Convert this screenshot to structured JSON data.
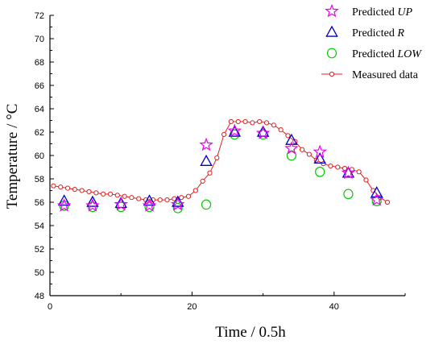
{
  "chart_data": {
    "type": "line",
    "xlabel": "Time / 0.5h",
    "ylabel": "Temperature / °C",
    "xlim": [
      0,
      50
    ],
    "ylim": [
      48,
      72
    ],
    "x_ticks": [
      0,
      20,
      40
    ],
    "y_ticks": [
      48,
      50,
      52,
      54,
      56,
      58,
      60,
      62,
      64,
      66,
      68,
      70,
      72
    ],
    "grid": false,
    "legend_position": "top-right",
    "colors": {
      "up": "#ee00ee",
      "r": "#0000cc",
      "low": "#00cc00",
      "measured": "#dd2222"
    },
    "series": [
      {
        "key": "up",
        "name": "Predicted UP",
        "name_prefix": "Predicted ",
        "name_em": "UP",
        "marker": "star",
        "x": [
          2,
          6,
          10,
          14,
          18,
          22,
          26,
          30,
          34,
          38,
          42,
          46
        ],
        "y": [
          55.7,
          55.7,
          55.8,
          55.7,
          55.8,
          60.9,
          62.1,
          61.9,
          60.6,
          60.3,
          58.5,
          56.2
        ]
      },
      {
        "key": "r",
        "name": "Predicted R",
        "name_prefix": "Predicted ",
        "name_em": "R",
        "marker": "triangle",
        "x": [
          2,
          6,
          10,
          14,
          18,
          22,
          26,
          30,
          34,
          38,
          42,
          46
        ],
        "y": [
          56.1,
          56.0,
          55.9,
          56.1,
          56.0,
          59.5,
          62.0,
          62.0,
          61.3,
          59.7,
          58.5,
          56.8
        ]
      },
      {
        "key": "low",
        "name": "Predicted LOW",
        "name_prefix": "Predicted ",
        "name_em": "LOW",
        "marker": "circle",
        "x": [
          2,
          6,
          10,
          14,
          18,
          22,
          26,
          30,
          34,
          38,
          42,
          46
        ],
        "y": [
          55.7,
          55.6,
          55.6,
          55.6,
          55.5,
          55.8,
          61.8,
          61.8,
          60.0,
          58.6,
          56.7,
          56.1
        ]
      },
      {
        "key": "measured",
        "name": "Measured data",
        "name_prefix": "Measured data",
        "name_em": "",
        "marker": "line-circle",
        "x": [
          0.5,
          1.5,
          2.5,
          3.5,
          4.5,
          5.5,
          6.5,
          7.5,
          8.5,
          9.5,
          10.5,
          11.5,
          12.5,
          13.5,
          14.5,
          15.5,
          16.5,
          17.5,
          18.5,
          19.5,
          20.5,
          21.5,
          22.5,
          23.5,
          24.5,
          25.5,
          26.5,
          27.5,
          28.5,
          29.5,
          30.5,
          31.5,
          32.5,
          33.5,
          34.5,
          35.5,
          36.5,
          37.5,
          38.5,
          39.5,
          40.5,
          41.5,
          42.5,
          43.5,
          44.5,
          45.5,
          46.5,
          47.5
        ],
        "y": [
          57.4,
          57.3,
          57.2,
          57.1,
          57.0,
          56.9,
          56.8,
          56.7,
          56.7,
          56.6,
          56.5,
          56.4,
          56.3,
          56.2,
          56.2,
          56.2,
          56.2,
          56.3,
          56.4,
          56.5,
          57.0,
          57.8,
          58.5,
          59.8,
          61.8,
          62.9,
          62.9,
          62.9,
          62.8,
          62.9,
          62.8,
          62.6,
          62.2,
          61.7,
          61.2,
          60.5,
          60.1,
          59.6,
          59.3,
          59.1,
          59.0,
          58.9,
          58.8,
          58.6,
          57.9,
          57.0,
          56.4,
          56.0
        ]
      }
    ]
  }
}
